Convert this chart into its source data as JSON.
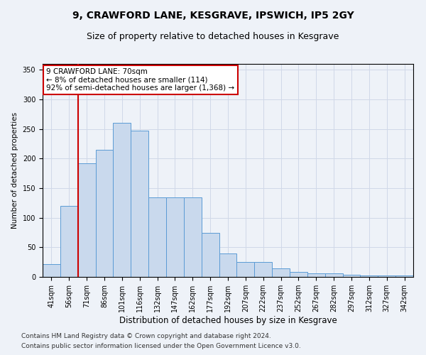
{
  "title1": "9, CRAWFORD LANE, KESGRAVE, IPSWICH, IP5 2GY",
  "title2": "Size of property relative to detached houses in Kesgrave",
  "xlabel": "Distribution of detached houses by size in Kesgrave",
  "ylabel": "Number of detached properties",
  "categories": [
    "41sqm",
    "56sqm",
    "71sqm",
    "86sqm",
    "101sqm",
    "116sqm",
    "132sqm",
    "147sqm",
    "162sqm",
    "177sqm",
    "192sqm",
    "207sqm",
    "222sqm",
    "237sqm",
    "252sqm",
    "267sqm",
    "282sqm",
    "297sqm",
    "312sqm",
    "327sqm",
    "342sqm"
  ],
  "values": [
    22,
    120,
    192,
    215,
    260,
    247,
    135,
    135,
    135,
    75,
    40,
    25,
    25,
    14,
    8,
    6,
    6,
    4,
    2,
    2,
    3
  ],
  "bar_color": "#c9d9ed",
  "bar_edge_color": "#5b9bd5",
  "vline_color": "#cc0000",
  "annotation_text": "9 CRAWFORD LANE: 70sqm\n← 8% of detached houses are smaller (114)\n92% of semi-detached houses are larger (1,368) →",
  "annotation_box_color": "#ffffff",
  "annotation_box_edge": "#cc0000",
  "grid_color": "#d0d8e8",
  "bg_color": "#eef2f8",
  "plot_bg_color": "#eef2f8",
  "footer1": "Contains HM Land Registry data © Crown copyright and database right 2024.",
  "footer2": "Contains public sector information licensed under the Open Government Licence v3.0.",
  "ylim": [
    0,
    360
  ],
  "title1_fontsize": 10,
  "title2_fontsize": 9,
  "xlabel_fontsize": 8.5,
  "ylabel_fontsize": 7.5,
  "tick_fontsize": 7,
  "footer_fontsize": 6.5,
  "ann_fontsize": 7.5
}
